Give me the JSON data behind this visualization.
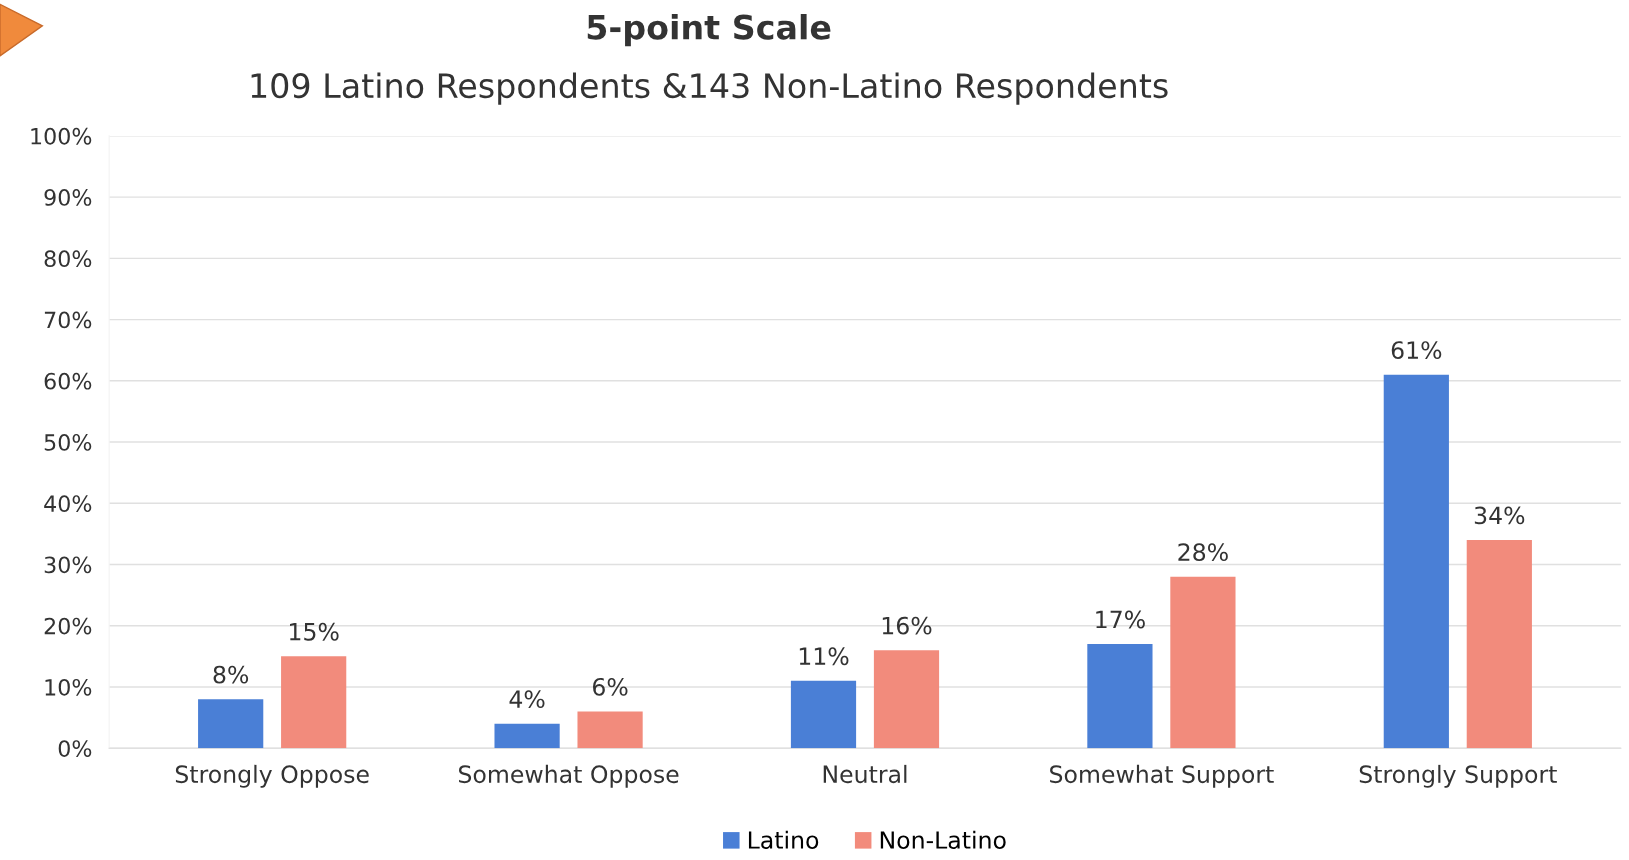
{
  "chart_data": {
    "type": "bar",
    "title": "5-point Scale",
    "subtitle": "109 Latino Respondents &143 Non-Latino Respondents",
    "categories": [
      "Strongly Oppose",
      "Somewhat Oppose",
      "Neutral",
      "Somewhat Support",
      "Strongly Support"
    ],
    "series": [
      {
        "name": "Latino",
        "color": "#4a7fd6",
        "values": [
          8,
          4,
          11,
          17,
          61
        ],
        "value_labels": [
          "8%",
          "4%",
          "11%",
          "17%",
          "61%"
        ]
      },
      {
        "name": "Non-Latino",
        "color": "#f28b7c",
        "values": [
          15,
          6,
          16,
          28,
          34
        ],
        "value_labels": [
          "15%",
          "6%",
          "16%",
          "28%",
          "34%"
        ]
      }
    ],
    "ylim": [
      0,
      100
    ],
    "yticks": [
      {
        "value": 0,
        "label": "0%"
      },
      {
        "value": 10,
        "label": "10%"
      },
      {
        "value": 20,
        "label": "20%"
      },
      {
        "value": 30,
        "label": "30%"
      },
      {
        "value": 40,
        "label": "40%"
      },
      {
        "value": 50,
        "label": "50%"
      },
      {
        "value": 60,
        "label": "60%"
      },
      {
        "value": 70,
        "label": "70%"
      },
      {
        "value": 80,
        "label": "80%"
      },
      {
        "value": 90,
        "label": "90%"
      },
      {
        "value": 100,
        "label": "100%"
      }
    ],
    "grid": "y",
    "legend": "bottom"
  }
}
